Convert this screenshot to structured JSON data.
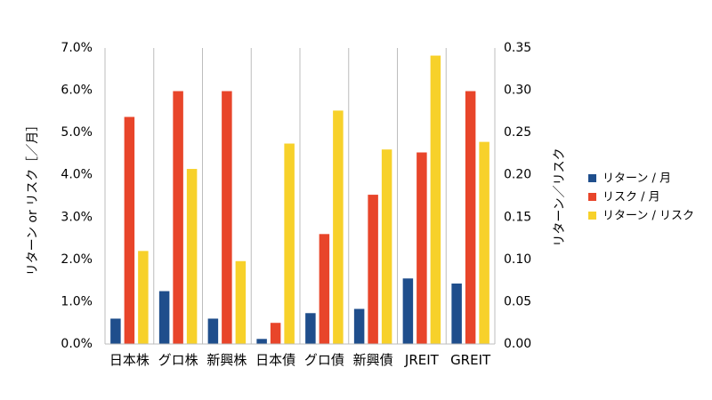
{
  "chart_data": {
    "type": "bar",
    "categories": [
      "日本株",
      "グロ株",
      "新興株",
      "日本債",
      "グロ債",
      "新興債",
      "JREIT",
      "GREIT"
    ],
    "y_left": {
      "label": "リターン or リスク［／月］",
      "ylim": [
        0,
        0.07
      ],
      "ticks": [
        0,
        0.01,
        0.02,
        0.03,
        0.04,
        0.05,
        0.06,
        0.07
      ],
      "tick_labels": [
        "0.0%",
        "1.0%",
        "2.0%",
        "3.0%",
        "4.0%",
        "5.0%",
        "6.0%",
        "7.0%"
      ]
    },
    "y_right": {
      "label": "リターン／リスク",
      "ylim": [
        0,
        0.35
      ],
      "ticks": [
        0,
        0.05,
        0.1,
        0.15,
        0.2,
        0.25,
        0.3,
        0.35
      ],
      "tick_labels": [
        "0.00",
        "0.05",
        "0.10",
        "0.15",
        "0.20",
        "0.25",
        "0.30",
        "0.35"
      ]
    },
    "series": [
      {
        "name": "リターン / 月",
        "axis": "left",
        "color": "#1f4e8c",
        "values": [
          0.006,
          0.0125,
          0.006,
          0.0012,
          0.0073,
          0.0083,
          0.0155,
          0.0143
        ]
      },
      {
        "name": "リスク / 月",
        "axis": "left",
        "color": "#e8452a",
        "values": [
          0.0537,
          0.0598,
          0.0598,
          0.005,
          0.026,
          0.0353,
          0.0453,
          0.0598
        ]
      },
      {
        "name": "リターン / リスク",
        "axis": "right",
        "color": "#f7d12a",
        "values": [
          0.11,
          0.207,
          0.098,
          0.237,
          0.276,
          0.23,
          0.341,
          0.239
        ]
      }
    ],
    "grid": {
      "vertical": true,
      "horizontal": false
    },
    "legend_position": "right"
  }
}
